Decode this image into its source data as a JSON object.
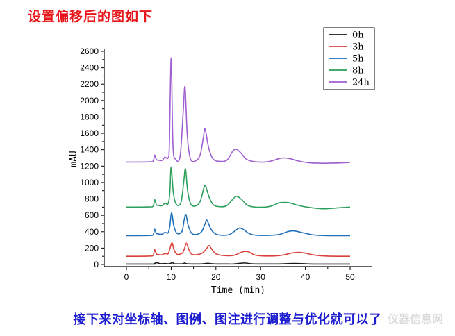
{
  "heading": "设置偏移后的图如下",
  "footer": "接下来对坐标轴、图例、图注进行调整与优化就可以了",
  "watermark": "仪器信息网",
  "chart_data": {
    "type": "line",
    "xlabel": "Time (min)",
    "ylabel": "mAU",
    "xlim": [
      -5,
      55
    ],
    "ylim": [
      -20,
      2600
    ],
    "xticks": [
      0,
      10,
      20,
      30,
      40,
      50
    ],
    "yticks": [
      0,
      200,
      400,
      600,
      800,
      1000,
      1200,
      1400,
      1600,
      1800,
      2000,
      2200,
      2400,
      2600
    ],
    "grid": false,
    "legend_position": "top-right",
    "series": [
      {
        "name": "0h",
        "color": "#1a1a1a",
        "x": [
          0,
          6.0,
          6.3,
          6.7,
          7.5,
          8.0,
          8.6,
          9.4,
          9.7,
          10.3,
          10.6,
          11.2,
          12.6,
          13.0,
          13.4,
          13.9,
          14.5,
          16.5,
          17.5,
          18.2,
          19.0,
          20.0,
          22.0,
          24.0,
          26.3,
          28.0,
          30.0,
          34.0,
          37.5,
          41.0,
          44.0,
          47.0,
          50.0
        ],
        "y": [
          5,
          5,
          12,
          22,
          10,
          9,
          11,
          8,
          10,
          22,
          9,
          7,
          8,
          18,
          9,
          7,
          6,
          6,
          10,
          14,
          9,
          6,
          6,
          6,
          18,
          8,
          6,
          6,
          12,
          6,
          5,
          5,
          5
        ]
      },
      {
        "name": "3h",
        "color": "#d9433b",
        "x": [
          0,
          5.0,
          6.0,
          6.3,
          6.7,
          7.2,
          8.0,
          8.6,
          9.3,
          9.7,
          10.2,
          10.6,
          11.3,
          12.5,
          13.0,
          13.4,
          13.9,
          14.5,
          15.5,
          17.0,
          18.0,
          18.5,
          19.3,
          20.2,
          22.0,
          24.0,
          25.5,
          26.5,
          27.5,
          28.5,
          30.0,
          33.0,
          35.0,
          37.0,
          38.5,
          40.0,
          42.0,
          45.0,
          50.0
        ],
        "y": [
          100,
          102,
          115,
          180,
          130,
          120,
          118,
          135,
          130,
          190,
          265,
          185,
          125,
          140,
          200,
          260,
          190,
          130,
          118,
          140,
          200,
          230,
          170,
          125,
          108,
          112,
          145,
          160,
          150,
          120,
          106,
          104,
          115,
          140,
          148,
          138,
          115,
          102,
          100
        ]
      },
      {
        "name": "5h",
        "color": "#1f6fba",
        "x": [
          0,
          5.0,
          6.0,
          6.3,
          6.7,
          7.2,
          8.0,
          8.6,
          9.3,
          9.7,
          10.1,
          10.6,
          11.3,
          12.4,
          12.9,
          13.3,
          13.8,
          14.5,
          15.5,
          16.8,
          17.6,
          18.0,
          18.8,
          19.7,
          21.0,
          23.0,
          24.5,
          25.3,
          26.2,
          27.2,
          28.5,
          31.0,
          34.0,
          36.0,
          37.0,
          38.0,
          40.0,
          42.0,
          45.0,
          50.0
        ],
        "y": [
          352,
          354,
          365,
          430,
          380,
          372,
          370,
          392,
          385,
          470,
          630,
          470,
          380,
          400,
          540,
          610,
          480,
          385,
          365,
          400,
          500,
          540,
          440,
          380,
          358,
          365,
          420,
          445,
          425,
          385,
          360,
          355,
          365,
          400,
          410,
          405,
          380,
          360,
          352,
          352
        ]
      },
      {
        "name": "8h",
        "color": "#2ca05a",
        "x": [
          0,
          5.0,
          6.0,
          6.3,
          6.7,
          7.2,
          8.0,
          8.6,
          9.3,
          9.7,
          10.0,
          10.5,
          11.2,
          12.2,
          12.8,
          13.2,
          13.7,
          14.4,
          15.5,
          16.5,
          17.3,
          17.7,
          18.5,
          19.5,
          21.0,
          22.5,
          24.0,
          24.8,
          25.8,
          27.0,
          28.5,
          31.0,
          32.5,
          34.0,
          35.0,
          36.5,
          38.5,
          41.0,
          44.0,
          47.0,
          50.0
        ],
        "y": [
          700,
          702,
          715,
          790,
          730,
          720,
          718,
          750,
          740,
          870,
          1190,
          870,
          730,
          760,
          1000,
          1165,
          890,
          735,
          715,
          770,
          930,
          955,
          820,
          725,
          705,
          720,
          810,
          830,
          790,
          725,
          702,
          700,
          715,
          750,
          758,
          752,
          720,
          695,
          680,
          690,
          700
        ]
      },
      {
        "name": "24h",
        "color": "#a05fd0",
        "x": [
          0,
          5.0,
          6.0,
          6.3,
          6.7,
          7.2,
          8.0,
          8.6,
          9.3,
          9.6,
          10.0,
          10.4,
          11.0,
          12.0,
          12.7,
          13.1,
          13.6,
          14.3,
          15.5,
          16.5,
          17.2,
          17.6,
          18.4,
          19.4,
          21.0,
          22.5,
          23.8,
          24.6,
          25.6,
          26.8,
          28.5,
          31.0,
          32.5,
          34.0,
          35.0,
          36.5,
          38.5,
          41.0,
          44.0,
          47.0,
          50.0
        ],
        "y": [
          1250,
          1252,
          1265,
          1335,
          1280,
          1272,
          1270,
          1310,
          1300,
          1460,
          2520,
          1460,
          1285,
          1320,
          1870,
          2165,
          1580,
          1290,
          1265,
          1340,
          1550,
          1650,
          1420,
          1285,
          1258,
          1275,
          1385,
          1405,
          1360,
          1285,
          1255,
          1250,
          1265,
          1290,
          1300,
          1292,
          1262,
          1240,
          1235,
          1238,
          1245
        ]
      }
    ]
  }
}
